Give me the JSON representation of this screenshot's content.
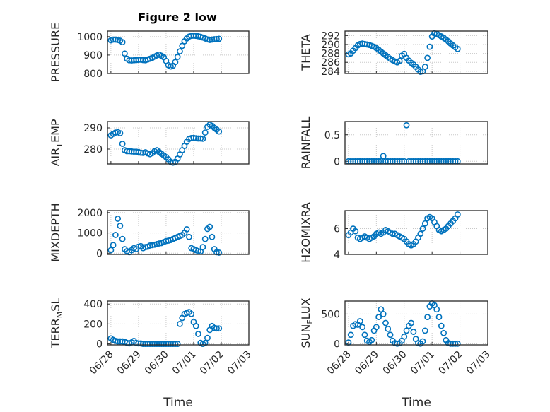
{
  "figure_title": "Figure 2 low",
  "marker_color": "#0072BD",
  "chart_data": [
    {
      "type": "scatter",
      "ylabel": "PRESSURE",
      "title": "Figure 2 low",
      "xlim": [
        "2018-06-27T21:00",
        "2018-07-03T00:00"
      ],
      "xticks": [
        "06/28",
        "06/29",
        "06/30",
        "07/01",
        "07/02",
        "07/03"
      ],
      "ylim": [
        800,
        1030
      ],
      "yticks": [
        800,
        900,
        1000
      ],
      "grid": true,
      "x": [
        "06/28 00:00",
        "06/28 02:00",
        "06/28 04:00",
        "06/28 06:00",
        "06/28 08:00",
        "06/28 10:00",
        "06/28 12:00",
        "06/28 14:00",
        "06/28 16:00",
        "06/28 18:00",
        "06/28 20:00",
        "06/28 22:00",
        "06/29 00:00",
        "06/29 02:00",
        "06/29 04:00",
        "06/29 06:00",
        "06/29 08:00",
        "06/29 10:00",
        "06/29 12:00",
        "06/29 14:00",
        "06/29 16:00",
        "06/29 18:00",
        "06/29 20:00",
        "06/29 22:00",
        "06/30 00:00",
        "06/30 02:00",
        "06/30 04:00",
        "06/30 06:00",
        "06/30 08:00",
        "06/30 10:00",
        "06/30 12:00",
        "06/30 14:00",
        "06/30 16:00",
        "06/30 18:00",
        "06/30 20:00",
        "06/30 22:00",
        "07/01 00:00",
        "07/01 02:00",
        "07/01 04:00",
        "07/01 06:00",
        "07/01 08:00",
        "07/01 10:00",
        "07/01 12:00",
        "07/01 14:00",
        "07/01 16:00",
        "07/01 18:00",
        "07/01 20:00",
        "07/01 22:00"
      ],
      "y": [
        980,
        984,
        984,
        982,
        978,
        970,
        908,
        880,
        872,
        871,
        872,
        873,
        874,
        875,
        873,
        872,
        876,
        880,
        885,
        892,
        898,
        902,
        896,
        888,
        868,
        845,
        838,
        842,
        862,
        890,
        920,
        950,
        975,
        990,
        1000,
        1004,
        1005,
        1004,
        1002,
        999,
        995,
        990,
        985,
        982,
        984,
        986,
        987,
        988
      ]
    },
    {
      "type": "scatter",
      "ylabel": "THETA",
      "xlim": [
        "2018-06-27T21:00",
        "2018-07-03T00:00"
      ],
      "xticks": [
        "06/28",
        "06/29",
        "06/30",
        "07/01",
        "07/02",
        "07/03"
      ],
      "ylim": [
        283.5,
        293
      ],
      "yticks": [
        284,
        286,
        288,
        290,
        292
      ],
      "grid": true,
      "x": [
        "06/28 00:00",
        "06/28 02:00",
        "06/28 04:00",
        "06/28 06:00",
        "06/28 08:00",
        "06/28 10:00",
        "06/28 12:00",
        "06/28 14:00",
        "06/28 16:00",
        "06/28 18:00",
        "06/28 20:00",
        "06/28 22:00",
        "06/29 00:00",
        "06/29 02:00",
        "06/29 04:00",
        "06/29 06:00",
        "06/29 08:00",
        "06/29 10:00",
        "06/29 12:00",
        "06/29 14:00",
        "06/29 16:00",
        "06/29 18:00",
        "06/29 20:00",
        "06/29 22:00",
        "06/30 00:00",
        "06/30 02:00",
        "06/30 04:00",
        "06/30 06:00",
        "06/30 08:00",
        "06/30 10:00",
        "06/30 12:00",
        "06/30 14:00",
        "06/30 16:00",
        "06/30 18:00",
        "06/30 20:00",
        "06/30 22:00",
        "07/01 00:00",
        "07/01 02:00",
        "07/01 04:00",
        "07/01 06:00",
        "07/01 08:00",
        "07/01 10:00",
        "07/01 12:00",
        "07/01 14:00",
        "07/01 16:00",
        "07/01 18:00",
        "07/01 20:00",
        "07/01 22:00"
      ],
      "y": [
        287.8,
        288.0,
        288.6,
        289.2,
        289.8,
        290.1,
        290.2,
        290.1,
        290.0,
        289.9,
        289.7,
        289.5,
        289.2,
        288.8,
        288.4,
        288.0,
        287.6,
        287.2,
        286.8,
        286.5,
        286.2,
        286.0,
        286.3,
        287.5,
        287.9,
        287.0,
        286.4,
        285.9,
        285.5,
        285.0,
        284.4,
        283.9,
        284.0,
        285.0,
        287.0,
        289.5,
        291.8,
        292.5,
        292.4,
        292.1,
        291.8,
        291.5,
        291.1,
        290.7,
        290.2,
        289.8,
        289.4,
        289.0
      ]
    },
    {
      "type": "scatter",
      "ylabel": "AIR_TEMP",
      "xlim": [
        "2018-06-27T21:00",
        "2018-07-03T00:00"
      ],
      "xticks": [
        "06/28",
        "06/29",
        "06/30",
        "07/01",
        "07/02",
        "07/03"
      ],
      "ylim": [
        273,
        293
      ],
      "yticks": [
        280,
        290
      ],
      "grid": true,
      "x": [
        "06/28 00:00",
        "06/28 02:00",
        "06/28 04:00",
        "06/28 06:00",
        "06/28 08:00",
        "06/28 10:00",
        "06/28 12:00",
        "06/28 14:00",
        "06/28 16:00",
        "06/28 18:00",
        "06/28 20:00",
        "06/28 22:00",
        "06/29 00:00",
        "06/29 02:00",
        "06/29 04:00",
        "06/29 06:00",
        "06/29 08:00",
        "06/29 10:00",
        "06/29 12:00",
        "06/29 14:00",
        "06/29 16:00",
        "06/29 18:00",
        "06/29 20:00",
        "06/29 22:00",
        "06/30 00:00",
        "06/30 02:00",
        "06/30 04:00",
        "06/30 06:00",
        "06/30 08:00",
        "06/30 10:00",
        "06/30 12:00",
        "06/30 14:00",
        "06/30 16:00",
        "06/30 18:00",
        "06/30 20:00",
        "06/30 22:00",
        "07/01 00:00",
        "07/01 02:00",
        "07/01 04:00",
        "07/01 06:00",
        "07/01 08:00",
        "07/01 10:00",
        "07/01 12:00",
        "07/01 14:00",
        "07/01 16:00",
        "07/01 18:00",
        "07/01 20:00",
        "07/01 22:00"
      ],
      "y": [
        286.5,
        287.2,
        287.8,
        288.0,
        287.5,
        282.5,
        279.5,
        279.0,
        279.0,
        278.9,
        278.8,
        278.8,
        278.6,
        278.3,
        278.2,
        278.5,
        278.0,
        277.6,
        278.1,
        279.0,
        279.5,
        278.6,
        277.8,
        277.0,
        276.2,
        275.2,
        274.0,
        273.6,
        274.0,
        275.5,
        277.5,
        279.5,
        281.5,
        283.5,
        284.8,
        285.2,
        285.3,
        285.1,
        285.0,
        285.0,
        284.9,
        287.8,
        290.5,
        291.5,
        291.0,
        290.0,
        289.2,
        288.3
      ]
    },
    {
      "type": "scatter",
      "ylabel": "RAINFALL",
      "xlim": [
        "2018-06-27T21:00",
        "2018-07-03T00:00"
      ],
      "xticks": [
        "06/28",
        "06/29",
        "06/30",
        "07/01",
        "07/02",
        "07/03"
      ],
      "ylim": [
        -0.05,
        0.75
      ],
      "yticks": [
        0,
        0.5
      ],
      "grid": true,
      "x": [
        "06/28 00:00",
        "06/28 02:00",
        "06/28 04:00",
        "06/28 06:00",
        "06/28 08:00",
        "06/28 10:00",
        "06/28 12:00",
        "06/28 14:00",
        "06/28 16:00",
        "06/28 18:00",
        "06/28 20:00",
        "06/28 22:00",
        "06/29 00:00",
        "06/29 02:00",
        "06/29 04:00",
        "06/29 06:00",
        "06/29 08:00",
        "06/29 10:00",
        "06/29 12:00",
        "06/29 14:00",
        "06/29 16:00",
        "06/29 18:00",
        "06/29 20:00",
        "06/29 22:00",
        "06/30 00:00",
        "06/30 02:00",
        "06/30 04:00",
        "06/30 06:00",
        "06/30 08:00",
        "06/30 10:00",
        "06/30 12:00",
        "06/30 14:00",
        "06/30 16:00",
        "06/30 18:00",
        "06/30 20:00",
        "06/30 22:00",
        "07/01 00:00",
        "07/01 02:00",
        "07/01 04:00",
        "07/01 06:00",
        "07/01 08:00",
        "07/01 10:00",
        "07/01 12:00",
        "07/01 14:00",
        "07/01 16:00",
        "07/01 18:00",
        "07/01 20:00",
        "07/01 22:00"
      ],
      "y": [
        0,
        0,
        0,
        0,
        0,
        0,
        0,
        0,
        0,
        0,
        0,
        0,
        0,
        0,
        0,
        0.1,
        0,
        0,
        0,
        0,
        0,
        0,
        0,
        0,
        0,
        0.68,
        0,
        0,
        0,
        0,
        0,
        0,
        0,
        0,
        0,
        0,
        0,
        0,
        0,
        0,
        0,
        0,
        0,
        0,
        0,
        0,
        0,
        0
      ]
    },
    {
      "type": "scatter",
      "ylabel": "MIXDEPTH",
      "xlim": [
        "2018-06-27T21:00",
        "2018-07-03T00:00"
      ],
      "xticks": [
        "06/28",
        "06/29",
        "06/30",
        "07/01",
        "07/02",
        "07/03"
      ],
      "ylim": [
        -60,
        2100
      ],
      "yticks": [
        0,
        1000,
        2000
      ],
      "grid": true,
      "x": [
        "06/28 00:00",
        "06/28 02:00",
        "06/28 04:00",
        "06/28 06:00",
        "06/28 08:00",
        "06/28 10:00",
        "06/28 12:00",
        "06/28 14:00",
        "06/28 16:00",
        "06/28 18:00",
        "06/28 20:00",
        "06/28 22:00",
        "06/29 00:00",
        "06/29 02:00",
        "06/29 04:00",
        "06/29 06:00",
        "06/29 08:00",
        "06/29 10:00",
        "06/29 12:00",
        "06/29 14:00",
        "06/29 16:00",
        "06/29 18:00",
        "06/29 20:00",
        "06/29 22:00",
        "06/30 00:00",
        "06/30 02:00",
        "06/30 04:00",
        "06/30 06:00",
        "06/30 08:00",
        "06/30 10:00",
        "06/30 12:00",
        "06/30 14:00",
        "06/30 16:00",
        "06/30 18:00",
        "06/30 20:00",
        "06/30 22:00",
        "07/01 00:00",
        "07/01 02:00",
        "07/01 04:00",
        "07/01 06:00",
        "07/01 08:00",
        "07/01 10:00",
        "07/01 12:00",
        "07/01 14:00",
        "07/01 16:00",
        "07/01 18:00",
        "07/01 20:00",
        "07/01 22:00"
      ],
      "y": [
        150,
        400,
        900,
        1700,
        1350,
        700,
        200,
        100,
        50,
        150,
        250,
        200,
        320,
        350,
        250,
        300,
        320,
        380,
        400,
        420,
        450,
        480,
        500,
        550,
        600,
        620,
        650,
        700,
        750,
        800,
        850,
        900,
        1000,
        1180,
        800,
        250,
        200,
        150,
        100,
        80,
        300,
        700,
        1200,
        1300,
        800,
        200,
        50,
        30
      ]
    },
    {
      "type": "scatter",
      "ylabel": "H2OMIXRA",
      "xlim": [
        "2018-06-27T21:00",
        "2018-07-03T00:00"
      ],
      "xticks": [
        "06/28",
        "06/29",
        "06/30",
        "07/01",
        "07/02",
        "07/03"
      ],
      "ylim": [
        4,
        7.4
      ],
      "yticks": [
        4,
        6
      ],
      "grid": true,
      "x": [
        "06/28 00:00",
        "06/28 02:00",
        "06/28 04:00",
        "06/28 06:00",
        "06/28 08:00",
        "06/28 10:00",
        "06/28 12:00",
        "06/28 14:00",
        "06/28 16:00",
        "06/28 18:00",
        "06/28 20:00",
        "06/28 22:00",
        "06/29 00:00",
        "06/29 02:00",
        "06/29 04:00",
        "06/29 06:00",
        "06/29 08:00",
        "06/29 10:00",
        "06/29 12:00",
        "06/29 14:00",
        "06/29 16:00",
        "06/29 18:00",
        "06/29 20:00",
        "06/29 22:00",
        "06/30 00:00",
        "06/30 02:00",
        "06/30 04:00",
        "06/30 06:00",
        "06/30 08:00",
        "06/30 10:00",
        "06/30 12:00",
        "06/30 14:00",
        "06/30 16:00",
        "06/30 18:00",
        "06/30 20:00",
        "06/30 22:00",
        "07/01 00:00",
        "07/01 02:00",
        "07/01 04:00",
        "07/01 06:00",
        "07/01 08:00",
        "07/01 10:00",
        "07/01 12:00",
        "07/01 14:00",
        "07/01 16:00",
        "07/01 18:00",
        "07/01 20:00",
        "07/01 22:00"
      ],
      "y": [
        5.5,
        5.7,
        6.0,
        5.8,
        5.3,
        5.2,
        5.3,
        5.4,
        5.3,
        5.2,
        5.3,
        5.4,
        5.6,
        5.7,
        5.6,
        5.7,
        5.9,
        5.8,
        5.7,
        5.6,
        5.6,
        5.5,
        5.4,
        5.3,
        5.2,
        5.0,
        4.8,
        4.7,
        4.8,
        5.0,
        5.3,
        5.6,
        6.0,
        6.4,
        6.8,
        6.9,
        6.8,
        6.5,
        6.2,
        5.9,
        5.8,
        5.9,
        6.0,
        6.2,
        6.4,
        6.6,
        6.8,
        7.1
      ]
    },
    {
      "type": "scatter",
      "ylabel": "TERR_MSL",
      "xlim": [
        "2018-06-27T21:00",
        "2018-07-03T00:00"
      ],
      "xticks": [
        "06/28",
        "06/29",
        "06/30",
        "07/01",
        "07/02",
        "07/03"
      ],
      "xlabel": "Time",
      "ylim": [
        -10,
        430
      ],
      "yticks": [
        0,
        200,
        400
      ],
      "grid": true,
      "x": [
        "06/28 00:00",
        "06/28 02:00",
        "06/28 04:00",
        "06/28 06:00",
        "06/28 08:00",
        "06/28 10:00",
        "06/28 12:00",
        "06/28 14:00",
        "06/28 16:00",
        "06/28 18:00",
        "06/28 20:00",
        "06/28 22:00",
        "06/29 00:00",
        "06/29 02:00",
        "06/29 04:00",
        "06/29 06:00",
        "06/29 08:00",
        "06/29 10:00",
        "06/29 12:00",
        "06/29 14:00",
        "06/29 16:00",
        "06/29 18:00",
        "06/29 20:00",
        "06/29 22:00",
        "06/30 00:00",
        "06/30 02:00",
        "06/30 04:00",
        "06/30 06:00",
        "06/30 08:00",
        "06/30 10:00",
        "06/30 12:00",
        "06/30 14:00",
        "06/30 16:00",
        "06/30 18:00",
        "06/30 20:00",
        "06/30 22:00",
        "07/01 00:00",
        "07/01 02:00",
        "07/01 04:00",
        "07/01 06:00",
        "07/01 08:00",
        "07/01 10:00",
        "07/01 12:00",
        "07/01 14:00",
        "07/01 16:00",
        "07/01 18:00",
        "07/01 20:00",
        "07/01 22:00"
      ],
      "y": [
        55,
        40,
        30,
        25,
        25,
        25,
        20,
        10,
        5,
        15,
        30,
        10,
        5,
        5,
        0,
        0,
        0,
        0,
        0,
        0,
        0,
        0,
        0,
        0,
        0,
        0,
        0,
        0,
        0,
        0,
        200,
        260,
        300,
        310,
        320,
        300,
        220,
        180,
        100,
        10,
        0,
        10,
        60,
        140,
        180,
        160,
        155,
        155
      ]
    },
    {
      "type": "scatter",
      "ylabel": "SUN_FLUX",
      "xlim": [
        "2018-06-27T21:00",
        "2018-07-03T00:00"
      ],
      "xticks": [
        "06/28",
        "06/29",
        "06/30",
        "07/01",
        "07/02",
        "07/03"
      ],
      "xlabel": "Time",
      "ylim": [
        -20,
        720
      ],
      "yticks": [
        0,
        500
      ],
      "grid": true,
      "x": [
        "06/28 00:00",
        "06/28 02:00",
        "06/28 04:00",
        "06/28 06:00",
        "06/28 08:00",
        "06/28 10:00",
        "06/28 12:00",
        "06/28 14:00",
        "06/28 16:00",
        "06/28 18:00",
        "06/28 20:00",
        "06/28 22:00",
        "06/29 00:00",
        "06/29 02:00",
        "06/29 04:00",
        "06/29 06:00",
        "06/29 08:00",
        "06/29 10:00",
        "06/29 12:00",
        "06/29 14:00",
        "06/29 16:00",
        "06/29 18:00",
        "06/29 20:00",
        "06/29 22:00",
        "06/30 00:00",
        "06/30 02:00",
        "06/30 04:00",
        "06/30 06:00",
        "06/30 08:00",
        "06/30 10:00",
        "06/30 12:00",
        "06/30 14:00",
        "06/30 16:00",
        "06/30 18:00",
        "06/30 20:00",
        "06/30 22:00",
        "07/01 00:00",
        "07/01 02:00",
        "07/01 04:00",
        "07/01 06:00",
        "07/01 08:00",
        "07/01 10:00",
        "07/01 12:00",
        "07/01 14:00",
        "07/01 16:00",
        "07/01 18:00",
        "07/01 20:00",
        "07/01 22:00"
      ],
      "y": [
        20,
        150,
        300,
        330,
        320,
        380,
        280,
        150,
        50,
        30,
        60,
        220,
        280,
        450,
        580,
        500,
        350,
        250,
        150,
        50,
        10,
        0,
        10,
        50,
        120,
        220,
        300,
        350,
        200,
        80,
        10,
        0,
        40,
        220,
        450,
        630,
        680,
        650,
        580,
        450,
        300,
        180,
        60,
        10,
        0,
        0,
        0,
        0
      ]
    }
  ]
}
